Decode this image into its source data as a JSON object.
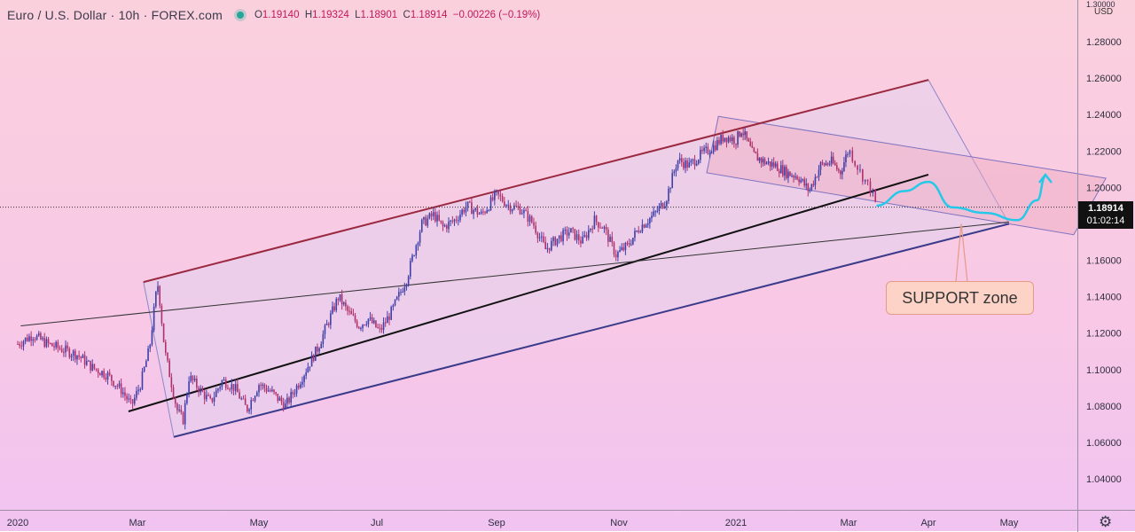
{
  "legend": {
    "symbol": "Euro / U.S. Dollar · 10h · FOREX.com",
    "o_label": "O",
    "o": "1.19140",
    "h_label": "H",
    "h": "1.19324",
    "l_label": "L",
    "l": "1.18901",
    "c_label": "C",
    "c": "1.18914",
    "change": "−0.00226 (−0.19%)"
  },
  "price_scale": {
    "currency": "USD",
    "top_partial_label": "1.30000"
  },
  "last_price": {
    "value": "1.18914",
    "countdown": "01:02:14"
  },
  "annotation": {
    "text": "SUPPORT zone"
  },
  "colors": {
    "up_candle": "#3f3fa8",
    "down_candle": "#b0306a",
    "channel_upper": "#9a2940",
    "channel_lower": "#3a3a8a",
    "support_curve": "#25c8e8",
    "channel_fill": "rgba(228,210,238,0.55)"
  },
  "icons": {
    "settings": "gear-icon",
    "status": "live-dot-icon"
  },
  "chart_data": {
    "type": "candlestick",
    "title": "Euro / U.S. Dollar · 10h · FOREX.com",
    "xlabel": "",
    "ylabel": "",
    "ylim": [
      1.03,
      1.305
    ],
    "yticks": [
      1.04,
      1.06,
      1.08,
      1.1,
      1.12,
      1.14,
      1.16,
      1.18,
      1.2,
      1.22,
      1.24,
      1.26,
      1.28
    ],
    "xticks": [
      "2020",
      "Mar",
      "May",
      "Jul",
      "Sep",
      "Nov",
      "2021",
      "Mar",
      "Apr",
      "May"
    ],
    "xtick_index": [
      0,
      2,
      4,
      6,
      8,
      10,
      12,
      14,
      15,
      16
    ],
    "grid": false,
    "series": [
      {
        "type": "candlestick",
        "close": [
          [
            0,
            1.114
          ],
          [
            0.25,
            1.119
          ],
          [
            0.5,
            1.114
          ],
          [
            1.0,
            1.108
          ],
          [
            1.25,
            1.101
          ],
          [
            1.5,
            1.097
          ],
          [
            1.75,
            1.088
          ],
          [
            1.9,
            1.08
          ],
          [
            2.05,
            1.092
          ],
          [
            2.2,
            1.112
          ],
          [
            2.3,
            1.14
          ],
          [
            2.34,
            1.147
          ],
          [
            2.45,
            1.11
          ],
          [
            2.65,
            1.078
          ],
          [
            2.75,
            1.072
          ],
          [
            2.85,
            1.096
          ],
          [
            3.0,
            1.09
          ],
          [
            3.2,
            1.082
          ],
          [
            3.4,
            1.094
          ],
          [
            3.6,
            1.09
          ],
          [
            3.8,
            1.078
          ],
          [
            4.0,
            1.092
          ],
          [
            4.2,
            1.088
          ],
          [
            4.45,
            1.08
          ],
          [
            4.7,
            1.094
          ],
          [
            5.0,
            1.112
          ],
          [
            5.2,
            1.128
          ],
          [
            5.35,
            1.14
          ],
          [
            5.5,
            1.132
          ],
          [
            5.7,
            1.124
          ],
          [
            5.85,
            1.128
          ],
          [
            6.05,
            1.121
          ],
          [
            6.25,
            1.132
          ],
          [
            6.5,
            1.15
          ],
          [
            6.75,
            1.18
          ],
          [
            6.95,
            1.185
          ],
          [
            7.1,
            1.178
          ],
          [
            7.3,
            1.182
          ],
          [
            7.5,
            1.19
          ],
          [
            7.75,
            1.185
          ],
          [
            8.0,
            1.196
          ],
          [
            8.2,
            1.19
          ],
          [
            8.4,
            1.188
          ],
          [
            8.6,
            1.18
          ],
          [
            8.8,
            1.166
          ],
          [
            9.0,
            1.172
          ],
          [
            9.2,
            1.176
          ],
          [
            9.4,
            1.17
          ],
          [
            9.6,
            1.182
          ],
          [
            9.75,
            1.178
          ],
          [
            9.95,
            1.163
          ],
          [
            10.15,
            1.168
          ],
          [
            10.35,
            1.178
          ],
          [
            10.6,
            1.185
          ],
          [
            10.8,
            1.193
          ],
          [
            11.0,
            1.215
          ],
          [
            11.2,
            1.212
          ],
          [
            11.4,
            1.218
          ],
          [
            11.6,
            1.222
          ],
          [
            11.8,
            1.228
          ],
          [
            12.0,
            1.226
          ],
          [
            12.1,
            1.232
          ],
          [
            12.3,
            1.218
          ],
          [
            12.5,
            1.214
          ],
          [
            12.7,
            1.212
          ],
          [
            12.9,
            1.208
          ],
          [
            13.1,
            1.206
          ],
          [
            13.3,
            1.198
          ],
          [
            13.5,
            1.212
          ],
          [
            13.7,
            1.214
          ],
          [
            13.85,
            1.208
          ],
          [
            14.0,
            1.221
          ],
          [
            14.15,
            1.208
          ],
          [
            14.3,
            1.197
          ],
          [
            14.35,
            1.189
          ]
        ]
      }
    ],
    "drawings": {
      "channel_upper": [
        [
          2.1,
          1.148
        ],
        [
          15.0,
          1.259
        ]
      ],
      "channel_lower": [
        [
          2.6,
          1.063
        ],
        [
          16.0,
          1.18
        ]
      ],
      "trendline_black": [
        [
          1.85,
          1.077
        ],
        [
          15.0,
          1.207
        ]
      ],
      "trendline_thin": [
        [
          0.05,
          1.124
        ],
        [
          16.0,
          1.181
        ]
      ],
      "descending_channel_top": [
        [
          11.7,
          1.239
        ],
        [
          17.2,
          1.205
        ]
      ],
      "descending_channel_bottom": [
        [
          11.5,
          1.208
        ],
        [
          16.8,
          1.174
        ]
      ],
      "projection_curve": [
        [
          14.35,
          1.19
        ],
        [
          14.7,
          1.198
        ],
        [
          15.0,
          1.203
        ],
        [
          15.3,
          1.189
        ],
        [
          15.7,
          1.186
        ],
        [
          16.1,
          1.182
        ],
        [
          16.35,
          1.193
        ],
        [
          16.45,
          1.206
        ]
      ]
    }
  }
}
